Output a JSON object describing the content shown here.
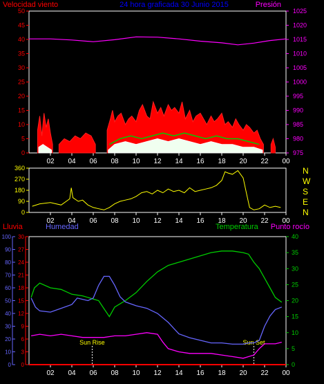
{
  "chart_data": [
    {
      "id": "wind_pressure",
      "type": "line",
      "title": "24 hora graficada  30 Junio 2015",
      "left_axis_label": "Velocidad viento",
      "right_axis_label": "Presión",
      "y_left": {
        "ticks": [
          0,
          5,
          10,
          15,
          20,
          25,
          30,
          35,
          40,
          45,
          50
        ]
      },
      "y_right": {
        "ticks": [
          975,
          980,
          985,
          990,
          995,
          1000,
          1005,
          1010,
          1015,
          1020,
          1025
        ]
      },
      "x_ticks": [
        "02",
        "04",
        "06",
        "08",
        "10",
        "12",
        "14",
        "16",
        "18",
        "20",
        "22",
        "00"
      ],
      "series": [
        {
          "name": "Presión",
          "axis": "right",
          "color": "#ff00ff",
          "hours": [
            0,
            2,
            4,
            6,
            8,
            10,
            12,
            14,
            16,
            18,
            19.5,
            21,
            22.5,
            24
          ],
          "values": [
            1015.2,
            1015.2,
            1014.8,
            1014.2,
            1014.9,
            1015.9,
            1015.8,
            1015.2,
            1014.4,
            1013.8,
            1013.1,
            1013.7,
            1014.6,
            1015.2
          ]
        },
        {
          "axis": "left",
          "color": "#ff0000",
          "style": "gust",
          "segments": [
            {
              "hours": [
                0.8,
                1.0,
                1.2,
                1.4,
                1.6,
                1.8,
                2.0,
                2.2
              ],
              "values": [
                8,
                13,
                6,
                14,
                9,
                12,
                7,
                3
              ]
            },
            {
              "hours": [
                2.8,
                3.3,
                3.8,
                4.3,
                4.8,
                5.3,
                5.8,
                6.2
              ],
              "values": [
                3,
                5,
                4,
                6,
                5,
                7,
                6,
                3
              ]
            },
            {
              "hours": [
                7.3,
                7.6,
                7.8,
                8.0,
                8.3,
                8.6,
                9.0,
                9.3,
                9.6,
                10.0,
                10.3,
                10.6,
                11.0,
                11.3,
                11.6,
                12.0,
                12.3,
                12.6,
                13.0,
                13.3,
                13.6,
                14.0,
                14.3,
                14.6,
                15.0,
                15.3,
                15.6,
                16.0,
                16.3,
                16.6,
                17.0,
                17.3,
                17.6,
                18.0,
                18.3,
                18.6,
                19.0,
                19.3,
                19.6,
                20.0,
                20.3,
                20.6,
                21.0,
                21.3,
                21.6,
                21.9
              ],
              "values": [
                8,
                12,
                15,
                11,
                13,
                14,
                10,
                12,
                13,
                11,
                15,
                17,
                13,
                12,
                18,
                14,
                16,
                13,
                17,
                15,
                16,
                14,
                18,
                12,
                15,
                11,
                13,
                14,
                12,
                10,
                13,
                11,
                12,
                14,
                10,
                11,
                9,
                12,
                10,
                8,
                10,
                9,
                7,
                8,
                5,
                3
              ]
            },
            {
              "hours": [
                22.6,
                22.8,
                23.0
              ],
              "values": [
                3,
                5,
                2
              ]
            }
          ]
        },
        {
          "axis": "left",
          "color": "#ffffff",
          "style": "mean",
          "segments": [
            {
              "hours": [
                0.9,
                1.3,
                1.7,
                2.1
              ],
              "values": [
                2,
                3,
                2,
                1
              ]
            },
            {
              "hours": [
                7.4,
                8.0,
                9.0,
                10.0,
                11.0,
                12.0,
                13.0,
                14.0,
                15.0,
                16.0,
                17.0,
                18.0,
                19.0,
                20.0,
                21.0,
                21.8
              ],
              "values": [
                1,
                3,
                4,
                3,
                4,
                5,
                4,
                5,
                4,
                3,
                4,
                3,
                3,
                2,
                2,
                1
              ]
            }
          ]
        },
        {
          "axis": "left",
          "color": "#00cc00",
          "style": "avg",
          "segments": [
            {
              "hours": [
                7.5,
                8.5,
                9.5,
                10.5,
                11.5,
                12.5,
                13.5,
                14.5,
                15.5,
                16.5,
                17.5,
                18.5,
                19.5,
                20.5,
                21.5
              ],
              "values": [
                3,
                5,
                6,
                5,
                6,
                7,
                6,
                7,
                6,
                5,
                6,
                5,
                5,
                4,
                3
              ]
            }
          ]
        }
      ]
    },
    {
      "id": "wind_direction",
      "type": "line",
      "y_ticks": [
        0,
        90,
        180,
        270,
        360
      ],
      "direction_labels": [
        "N",
        "W",
        "S",
        "E",
        "N"
      ],
      "x_ticks": [
        "02",
        "04",
        "06",
        "08",
        "10",
        "12",
        "14",
        "16",
        "18",
        "20",
        "22",
        "00"
      ],
      "series": [
        {
          "color": "#ffff00",
          "hours": [
            0.3,
            1.0,
            2.0,
            3.0,
            3.8,
            3.95,
            4.1,
            4.6,
            5.0,
            5.5,
            6.0,
            6.5,
            7.0,
            7.5,
            8.0,
            8.5,
            9.0,
            9.5,
            10.0,
            10.5,
            11.0,
            11.5,
            12.0,
            12.5,
            13.0,
            13.5,
            14.0,
            14.5,
            15.0,
            15.5,
            16.0,
            16.5,
            17.0,
            17.5,
            18.0,
            18.3,
            18.6,
            19.0,
            19.5,
            20.0,
            20.3,
            20.6,
            21.0,
            21.5,
            22.0,
            22.5,
            23.0,
            23.5
          ],
          "values": [
            50,
            70,
            80,
            60,
            110,
            200,
            120,
            90,
            100,
            60,
            40,
            30,
            20,
            40,
            70,
            90,
            100,
            110,
            130,
            160,
            170,
            150,
            180,
            160,
            190,
            170,
            180,
            160,
            200,
            170,
            180,
            190,
            200,
            220,
            260,
            330,
            320,
            310,
            340,
            280,
            160,
            40,
            20,
            30,
            60,
            40,
            50,
            40
          ]
        }
      ]
    },
    {
      "id": "temp_humidity",
      "type": "line",
      "labels": {
        "rain": "Lluvia",
        "humidity": "Humedad",
        "temperature": "Temperatura",
        "dew_point": "Punto rocío"
      },
      "axes": {
        "humidity": {
          "ticks": [
            0,
            10,
            20,
            30,
            40,
            50,
            60,
            70,
            80,
            90,
            100
          ]
        },
        "rain": {
          "ticks": [
            0,
            3,
            6,
            9,
            12,
            15,
            18,
            21,
            24,
            27,
            30
          ]
        },
        "temperature": {
          "ticks": [
            0,
            5,
            10,
            15,
            20,
            25,
            30,
            35,
            40
          ]
        }
      },
      "x_ticks": [
        "02",
        "04",
        "06",
        "08",
        "10",
        "12",
        "14",
        "16",
        "18",
        "20",
        "22",
        "00"
      ],
      "annotations": [
        {
          "hour": 5.9,
          "label": "Sun Rise"
        },
        {
          "hour": 21.0,
          "label": "Sun Set"
        }
      ],
      "series": [
        {
          "name": "Temperatura",
          "axis": "temperature",
          "color": "#00cc00",
          "hours": [
            0.2,
            0.5,
            1.0,
            2.0,
            3.0,
            4.0,
            5.0,
            6.0,
            6.5,
            7.0,
            7.5,
            8.0,
            8.5,
            9.0,
            10.0,
            11.0,
            12.0,
            13.0,
            14.0,
            15.0,
            16.0,
            17.0,
            18.0,
            19.0,
            20.0,
            20.5,
            21.0,
            21.5,
            22.0,
            22.5,
            23.0,
            23.6
          ],
          "values": [
            21,
            24,
            25.5,
            24,
            23.5,
            22,
            21.5,
            20.5,
            20,
            17.5,
            15,
            18,
            19,
            20,
            22.5,
            26,
            29,
            31,
            32,
            33,
            34,
            35,
            35.5,
            35.5,
            35,
            34.5,
            32,
            30,
            27,
            24,
            21,
            19.5
          ]
        },
        {
          "name": "Humedad",
          "axis": "humidity",
          "color": "#6666ff",
          "hours": [
            0.2,
            0.6,
            1.0,
            2.0,
            3.0,
            4.0,
            4.5,
            5.0,
            5.5,
            6.0,
            6.5,
            7.0,
            7.5,
            8.0,
            8.5,
            9.0,
            10.0,
            11.0,
            12.0,
            13.0,
            14.0,
            15.0,
            16.0,
            17.0,
            18.0,
            19.0,
            20.0,
            20.5,
            21.0,
            21.5,
            22.0,
            22.5,
            23.0,
            23.6
          ],
          "values": [
            52,
            45,
            42,
            41,
            44,
            47,
            52,
            51,
            50,
            52,
            62,
            69,
            69,
            62,
            53,
            49,
            46,
            44,
            40,
            33,
            24,
            21,
            19,
            17,
            17,
            16,
            16,
            17,
            17,
            19,
            30,
            38,
            43,
            45
          ]
        },
        {
          "name": "Punto rocío",
          "axis": "temperature",
          "color": "#ff00ff",
          "hours": [
            0.2,
            1.0,
            2.0,
            3.0,
            4.0,
            5.0,
            6.0,
            7.0,
            8.0,
            9.0,
            10.0,
            11.0,
            12.0,
            12.5,
            13.0,
            14.0,
            15.0,
            16.0,
            17.0,
            18.0,
            19.0,
            20.0,
            21.0,
            21.5,
            22.0,
            23.0,
            23.6
          ],
          "values": [
            9,
            9.5,
            9,
            9.5,
            9,
            8.5,
            8.5,
            8.5,
            9,
            9,
            9.5,
            10,
            9.5,
            7,
            5,
            4,
            3.5,
            3.5,
            3.5,
            3,
            2.5,
            2,
            3,
            5,
            6.5,
            6.5,
            7
          ]
        },
        {
          "name": "Lluvia",
          "axis": "rain",
          "color": "#ff0000",
          "hours": [
            0.0,
            24.0
          ],
          "values": [
            0,
            0
          ]
        }
      ]
    }
  ]
}
